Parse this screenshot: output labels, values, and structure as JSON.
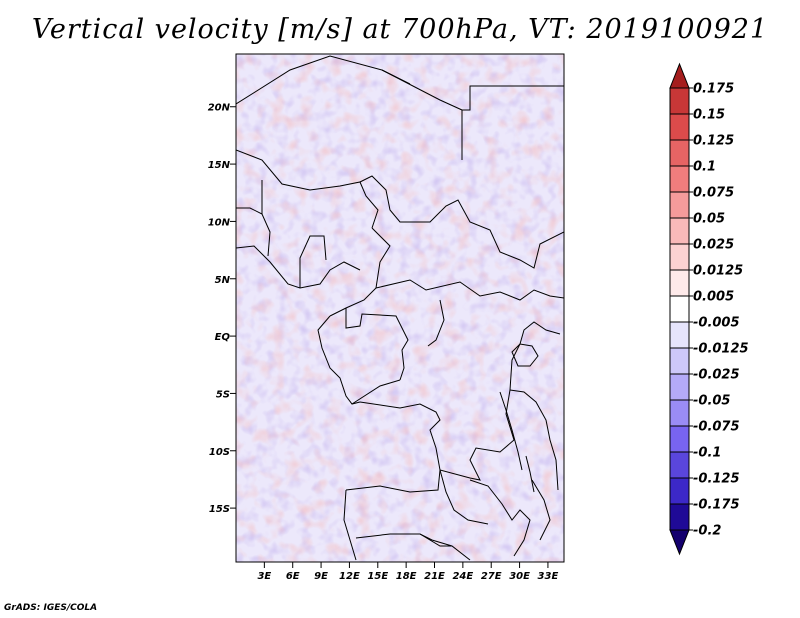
{
  "title": "Vertical velocity [m/s] at 700hPa, VT: 2019100921",
  "credit": "GrADS: IGES/COLA",
  "map": {
    "lat_labels": [
      {
        "label": "20N",
        "lat": 20
      },
      {
        "label": "15N",
        "lat": 15
      },
      {
        "label": "10N",
        "lat": 10
      },
      {
        "label": "5N",
        "lat": 5
      },
      {
        "label": "EQ",
        "lat": 0
      },
      {
        "label": "5S",
        "lat": -5
      },
      {
        "label": "10S",
        "lat": -10
      },
      {
        "label": "15S",
        "lat": -15
      }
    ],
    "lon_labels": [
      {
        "label": "3E",
        "lon": 3
      },
      {
        "label": "6E",
        "lon": 6
      },
      {
        "label": "9E",
        "lon": 9
      },
      {
        "label": "12E",
        "lon": 12
      },
      {
        "label": "15E",
        "lon": 15
      },
      {
        "label": "18E",
        "lon": 18
      },
      {
        "label": "21E",
        "lon": 21
      },
      {
        "label": "24E",
        "lon": 24
      },
      {
        "label": "27E",
        "lon": 27
      },
      {
        "label": "30E",
        "lon": 30
      },
      {
        "label": "33E",
        "lon": 33
      }
    ],
    "field_colors": [
      "#1f0a96",
      "#3c28c8",
      "#5a46dc",
      "#7864f0",
      "#9a8cf5",
      "#b4aaf8",
      "#cdc8fa",
      "#e6e4fc",
      "#ffffff",
      "#fce6e6",
      "#fad2d2",
      "#f7b4b4",
      "#f09696",
      "#e67878",
      "#dc5050",
      "#cd3232",
      "#b41e1e",
      "#9b0f0f"
    ]
  },
  "colorbar": {
    "labels": [
      "0.175",
      "0.15",
      "0.125",
      "0.1",
      "0.075",
      "0.05",
      "0.025",
      "0.0125",
      "0.005",
      "-0.005",
      "-0.0125",
      "-0.025",
      "-0.05",
      "-0.075",
      "-0.1",
      "-0.125",
      "-0.175",
      "-0.2"
    ],
    "colors": [
      "#b42828",
      "#c83737",
      "#dc4b4b",
      "#e66464",
      "#f07d7d",
      "#f59b9b",
      "#f9b9b9",
      "#fcd2d2",
      "#feeaea",
      "#ffffff",
      "#e6e4fc",
      "#cdc8fa",
      "#b4aaf8",
      "#9a8cf5",
      "#7864f0",
      "#5a46dc",
      "#3c28c8",
      "#1f0a96",
      "#14006e"
    ],
    "top_arrow_color": "#a51e1e",
    "bottom_arrow_color": "#14006e"
  }
}
